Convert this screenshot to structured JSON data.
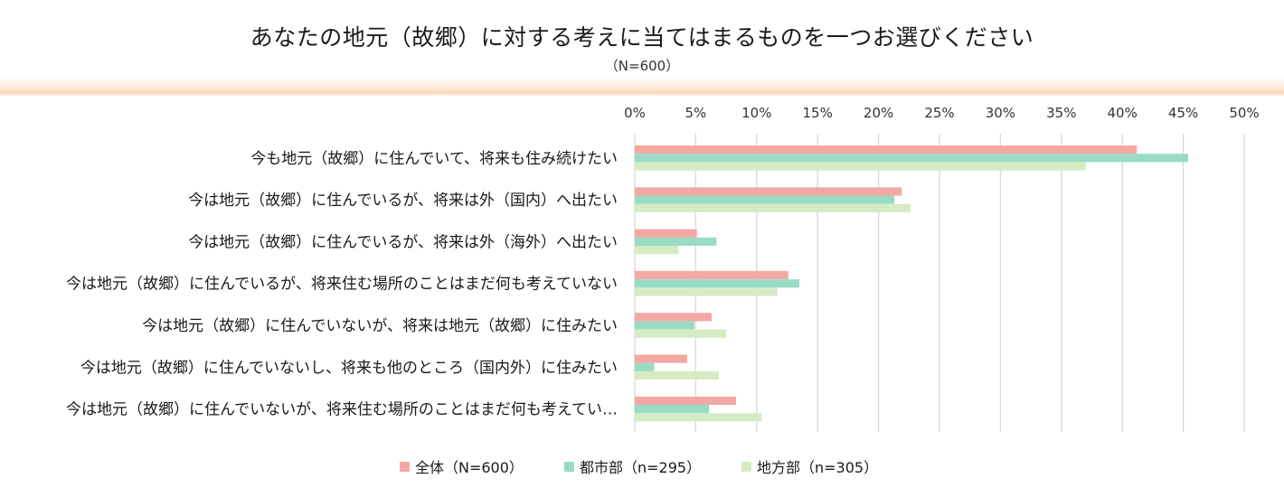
{
  "chart_data": {
    "type": "bar",
    "orientation": "horizontal",
    "title": "あなたの地元（故郷）に対する考えに当てはまるものを一つお選びください",
    "subtitle": "（N=600）",
    "xlim": [
      0,
      50
    ],
    "ticks": [
      0,
      5,
      10,
      15,
      20,
      25,
      30,
      35,
      40,
      45,
      50
    ],
    "tick_labels": [
      "0%",
      "5%",
      "10%",
      "15%",
      "20%",
      "25%",
      "30%",
      "35%",
      "40%",
      "45%",
      "50%"
    ],
    "grid": true,
    "legend_position": "bottom",
    "categories": [
      "今も地元（故郷）に住んでいて、将来も住み続けたい",
      "今は地元（故郷）に住んでいるが、将来は外（国内）へ出たい",
      "今は地元（故郷）に住んでいるが、将来は外（海外）へ出たい",
      "今は地元（故郷）に住んでいるが、将来住む場所のことはまだ何も考えていない",
      "今は地元（故郷）に住んでいないが、将来は地元（故郷）に住みたい",
      "今は地元（故郷）に住んでいないし、将来も他のところ（国内外）に住みたい",
      "今は地元（故郷）に住んでいないが、将来住む場所のことはまだ何も考えてい…"
    ],
    "series": [
      {
        "name": "全体（N=600）",
        "color": "#f4a8a4",
        "values": [
          41.2,
          21.9,
          5.1,
          12.6,
          6.3,
          4.3,
          8.3
        ]
      },
      {
        "name": "都市部（n=295）",
        "color": "#99dcc6",
        "values": [
          45.4,
          21.3,
          6.7,
          13.5,
          4.9,
          1.6,
          6.1
        ]
      },
      {
        "name": "地方部（n=305）",
        "color": "#d5ebc4",
        "values": [
          37.0,
          22.6,
          3.6,
          11.7,
          7.5,
          6.9,
          10.4
        ]
      }
    ]
  }
}
